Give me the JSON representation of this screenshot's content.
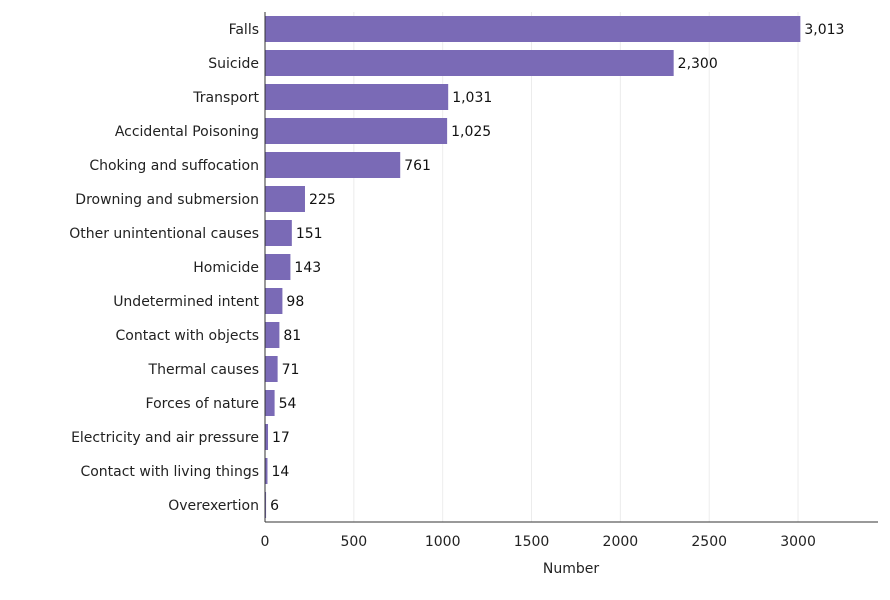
{
  "chart_data": {
    "type": "bar",
    "orientation": "horizontal",
    "categories": [
      "Falls",
      "Suicide",
      "Transport",
      "Accidental Poisoning",
      "Choking and suffocation",
      "Drowning and submersion",
      "Other unintentional causes",
      "Homicide",
      "Undetermined intent",
      "Contact with objects",
      "Thermal causes",
      "Forces of nature",
      "Electricity and air pressure",
      "Contact with living things",
      "Overexertion"
    ],
    "values": [
      3013,
      2300,
      1031,
      1025,
      761,
      225,
      151,
      143,
      98,
      81,
      71,
      54,
      17,
      14,
      6
    ],
    "value_labels": [
      "3,013",
      "2,300",
      "1,031",
      "1,025",
      "761",
      "225",
      "151",
      "143",
      "98",
      "81",
      "71",
      "54",
      "17",
      "14",
      "6"
    ],
    "title": "",
    "xlabel": "Number",
    "ylabel": "",
    "xlim": [
      0,
      3450
    ],
    "xticks": [
      0,
      500,
      1000,
      1500,
      2000,
      2500,
      3000
    ],
    "xtick_labels": [
      "0",
      "500",
      "1000",
      "1500",
      "2000",
      "2500",
      "3000"
    ],
    "grid": "vertical",
    "bar_color": "#7a6ab6"
  }
}
